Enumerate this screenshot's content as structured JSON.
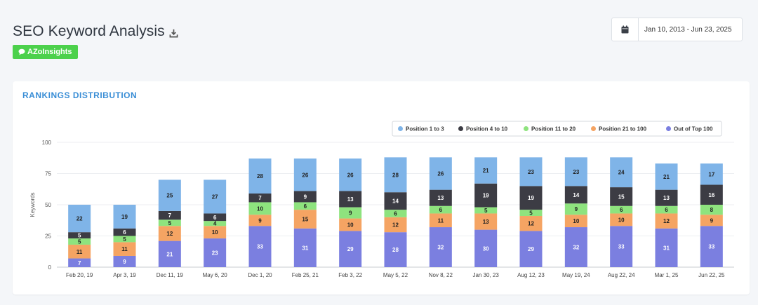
{
  "header": {
    "title": "SEO Keyword Analysis",
    "badge_label": "AZoInsights",
    "badge_color": "#4cd14c"
  },
  "date_picker": {
    "range": "Jan 10, 2013 - Jun 23, 2025"
  },
  "card": {
    "title": "RANKINGS DISTRIBUTION"
  },
  "chart_data": {
    "type": "bar",
    "stacked": true,
    "ylabel": "Keywords",
    "ylim": [
      0,
      100
    ],
    "yticks": [
      0,
      25,
      50,
      75,
      100
    ],
    "grid": true,
    "legend_position": "top-right",
    "categories": [
      "Feb 20, 19",
      "Apr 3, 19",
      "Dec 11, 19",
      "May 6, 20",
      "Dec 1, 20",
      "Feb 25, 21",
      "Feb 3, 22",
      "May 5, 22",
      "Nov 8, 22",
      "Jan 30, 23",
      "Aug 12, 23",
      "May 19, 24",
      "Aug 22, 24",
      "Mar 1, 25",
      "Jun 22, 25"
    ],
    "series": [
      {
        "name": "Out of Top 100",
        "color": "#7b7fe0",
        "label_color": "#ffffff",
        "values": [
          7,
          9,
          21,
          23,
          33,
          31,
          29,
          28,
          32,
          30,
          29,
          32,
          33,
          31,
          33
        ]
      },
      {
        "name": "Position 21 to 100",
        "color": "#f5a463",
        "label_color": "#222222",
        "values": [
          11,
          11,
          12,
          10,
          9,
          15,
          10,
          12,
          11,
          13,
          12,
          10,
          10,
          12,
          9
        ]
      },
      {
        "name": "Position 11 to 20",
        "color": "#8ee37e",
        "label_color": "#222222",
        "values": [
          5,
          5,
          5,
          4,
          10,
          6,
          9,
          6,
          6,
          5,
          5,
          9,
          6,
          6,
          8
        ]
      },
      {
        "name": "Position 4 to 10",
        "color": "#3c3c44",
        "label_color": "#ffffff",
        "values": [
          5,
          6,
          7,
          6,
          7,
          9,
          13,
          14,
          13,
          19,
          19,
          14,
          15,
          13,
          16
        ]
      },
      {
        "name": "Position 1 to 3",
        "color": "#7fb4e8",
        "label_color": "#222222",
        "values": [
          22,
          19,
          25,
          27,
          28,
          26,
          26,
          28,
          26,
          21,
          23,
          23,
          24,
          21,
          17
        ]
      }
    ],
    "legend_order": [
      "Position 1 to 3",
      "Position 4 to 10",
      "Position 11 to 20",
      "Position 21 to 100",
      "Out of Top 100"
    ]
  }
}
